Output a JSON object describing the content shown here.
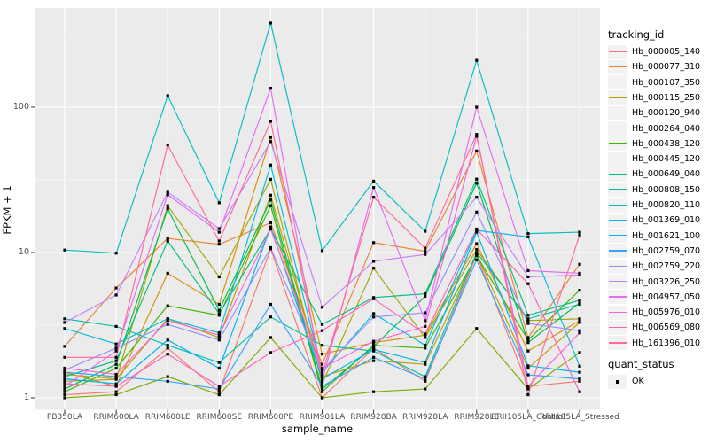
{
  "chart_data": {
    "type": "line",
    "xlabel": "sample_name",
    "ylabel": "FPKM + 1",
    "y_scale": "log10",
    "yticks": [
      1,
      10,
      100
    ],
    "ylim": [
      0.83,
      475
    ],
    "grid": true,
    "legend_position": "right",
    "point_shape": "black-square",
    "categories": [
      "PB350LA",
      "RRIM600LA",
      "RRIM600LE",
      "RRIM600SE",
      "RRIM600PE",
      "RRIM901LA",
      "RRIM928BA",
      "RRIM928LA",
      "RRIM928LE",
      "RRII105LA_Control",
      "RRII105LA_Stressed"
    ],
    "series": [
      {
        "name": "Hb_000005_140",
        "color": "#F8766D",
        "values": [
          1.05,
          1.1,
          2.2,
          1.1,
          10.6,
          1.0,
          2.2,
          1.3,
          9.6,
          1.2,
          1.3
        ]
      },
      {
        "name": "Hb_000077_310",
        "color": "#EA8331",
        "values": [
          2.26,
          5.7,
          12.5,
          11.4,
          16.0,
          1.7,
          11.7,
          10.2,
          50,
          2.6,
          8.3
        ]
      },
      {
        "name": "Hb_000107_350",
        "color": "#D89000",
        "values": [
          1.5,
          1.2,
          7.2,
          4.4,
          62,
          2.0,
          2.4,
          2.7,
          11.5,
          2.1,
          3.4
        ]
      },
      {
        "name": "Hb_000115_250",
        "color": "#C09B00",
        "values": [
          1.45,
          1.35,
          3.5,
          2.6,
          24.8,
          1.4,
          1.8,
          1.7,
          9.8,
          1.6,
          3.3
        ]
      },
      {
        "name": "Hb_000120_940",
        "color": "#A3A500",
        "values": [
          1.3,
          1.34,
          21,
          6.8,
          31.9,
          1.25,
          7.8,
          2.6,
          10.5,
          3.4,
          3.5
        ]
      },
      {
        "name": "Hb_000264_040",
        "color": "#7CAE00",
        "values": [
          1.0,
          1.05,
          1.4,
          1.05,
          2.6,
          1.0,
          1.1,
          1.15,
          3.0,
          1.15,
          2.05
        ]
      },
      {
        "name": "Hb_000438_120",
        "color": "#39B600",
        "values": [
          1.1,
          1.6,
          4.3,
          3.7,
          21,
          1.1,
          2.3,
          2.2,
          9.5,
          2.5,
          5.5
        ]
      },
      {
        "name": "Hb_000445_120",
        "color": "#00BB4E",
        "values": [
          1.15,
          1.7,
          20,
          4.0,
          23,
          1.15,
          2.25,
          5.0,
          30,
          2.4,
          4.5
        ]
      },
      {
        "name": "Hb_000649_040",
        "color": "#00BF7D",
        "values": [
          1.4,
          1.8,
          12.0,
          3.8,
          14.5,
          3.2,
          4.9,
          5.2,
          32,
          3.7,
          4.7
        ]
      },
      {
        "name": "Hb_000808_150",
        "color": "#00C1A3",
        "values": [
          3.5,
          3.1,
          2.3,
          1.75,
          3.6,
          2.3,
          2.1,
          1.4,
          10.0,
          3.5,
          4.4
        ]
      },
      {
        "name": "Hb_000820_110",
        "color": "#00BFC4",
        "values": [
          10.4,
          9.9,
          120,
          22,
          380,
          10.3,
          31,
          14,
          210,
          13.5,
          13.8
        ]
      },
      {
        "name": "Hb_001369_010",
        "color": "#00BAE0",
        "values": [
          3.0,
          2.35,
          3.5,
          2.8,
          40,
          1.5,
          3.8,
          2.3,
          14.2,
          12.8,
          1.65
        ]
      },
      {
        "name": "Hb_001621_100",
        "color": "#00B0F6",
        "values": [
          1.35,
          1.25,
          2.5,
          1.6,
          15,
          1.35,
          2.15,
          1.75,
          13.8,
          1.66,
          1.5
        ]
      },
      {
        "name": "Hb_002759_070",
        "color": "#35A2FF",
        "values": [
          1.5,
          1.4,
          1.3,
          1.15,
          4.4,
          1.2,
          1.9,
          1.35,
          8.9,
          1.44,
          1.35
        ]
      },
      {
        "name": "Hb_002759_220",
        "color": "#9590FF",
        "values": [
          1.55,
          2.2,
          3.2,
          2.5,
          10.8,
          1.55,
          3.6,
          3.85,
          19,
          3.25,
          2.9
        ]
      },
      {
        "name": "Hb_003226_250",
        "color": "#C77CFF",
        "values": [
          3.3,
          5.1,
          26,
          14.6,
          58,
          4.2,
          8.7,
          9.7,
          24,
          6.8,
          7.0
        ]
      },
      {
        "name": "Hb_004957_050",
        "color": "#E76BF3",
        "values": [
          1.2,
          2.1,
          25,
          13.8,
          135,
          1.3,
          28,
          3.4,
          100,
          7.5,
          7.2
        ]
      },
      {
        "name": "Hb_005976_010",
        "color": "#FA62DB",
        "values": [
          1.6,
          1.45,
          3.4,
          2.7,
          14.5,
          1.6,
          2.45,
          3.1,
          63,
          1.2,
          2.8
        ]
      },
      {
        "name": "Hb_006569_080",
        "color": "#FF62BC",
        "values": [
          1.25,
          1.2,
          2.0,
          1.2,
          2.05,
          2.9,
          4.8,
          2.75,
          14.5,
          6.1,
          1.1
        ]
      },
      {
        "name": "Hb_161396_010",
        "color": "#FF6A98",
        "values": [
          1.9,
          1.9,
          55,
          12.0,
          80,
          1.45,
          24,
          10.7,
          65,
          1.05,
          13.2
        ]
      }
    ],
    "legend": {
      "tracking_title": "tracking_id",
      "quant_title": "quant_status",
      "quant_items": [
        "OK"
      ]
    }
  },
  "colors": {
    "panel_bg": "#EBEBEB",
    "grid": "#FFFFFF",
    "point": "#000000",
    "tick_text": "#4D4D4D",
    "key_bg": "#F2F2F2"
  }
}
